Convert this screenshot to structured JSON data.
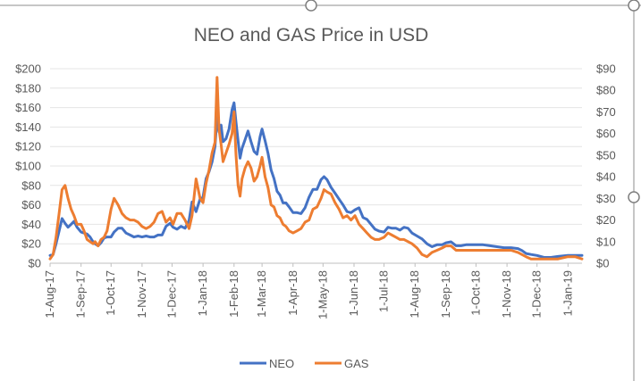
{
  "chart_data": {
    "type": "line",
    "title": "NEO and GAS Price in USD",
    "x_tick_labels": [
      "1-Aug-17",
      "1-Sep-17",
      "1-Oct-17",
      "1-Nov-17",
      "1-Dec-17",
      "1-Jan-18",
      "1-Feb-18",
      "1-Mar-18",
      "1-Apr-18",
      "1-May-18",
      "1-Jun-18",
      "1-Jul-18",
      "1-Aug-18",
      "1-Sep-18",
      "1-Oct-18",
      "1-Nov-18",
      "1-Dec-18",
      "1-Jan-19"
    ],
    "x_range": [
      "2017-08-01",
      "2019-01-15"
    ],
    "y_left": {
      "min": 0,
      "max": 200,
      "tick_labels": [
        "$0",
        "$20",
        "$40",
        "$60",
        "$80",
        "$100",
        "$120",
        "$140",
        "$160",
        "$180",
        "$200"
      ]
    },
    "y_right": {
      "min": 0,
      "max": 90,
      "tick_labels": [
        "$0",
        "$10",
        "$20",
        "$30",
        "$40",
        "$50",
        "$60",
        "$70",
        "$80",
        "$90"
      ]
    },
    "gridlines": true,
    "legend_position": "bottom",
    "series": [
      {
        "name": "NEO",
        "axis": "left",
        "color": "#4472C4",
        "points": [
          [
            "2017-08-01",
            8
          ],
          [
            "2017-08-04",
            9
          ],
          [
            "2017-08-07",
            20
          ],
          [
            "2017-08-10",
            33
          ],
          [
            "2017-08-13",
            46
          ],
          [
            "2017-08-16",
            41
          ],
          [
            "2017-08-19",
            37
          ],
          [
            "2017-08-22",
            40
          ],
          [
            "2017-08-25",
            43
          ],
          [
            "2017-08-28",
            37
          ],
          [
            "2017-09-01",
            32
          ],
          [
            "2017-09-04",
            31
          ],
          [
            "2017-09-07",
            30
          ],
          [
            "2017-09-10",
            27
          ],
          [
            "2017-09-13",
            22
          ],
          [
            "2017-09-15",
            20
          ],
          [
            "2017-09-18",
            18
          ],
          [
            "2017-09-21",
            21
          ],
          [
            "2017-09-24",
            26
          ],
          [
            "2017-09-27",
            27
          ],
          [
            "2017-10-01",
            27
          ],
          [
            "2017-10-04",
            32
          ],
          [
            "2017-10-08",
            36
          ],
          [
            "2017-10-12",
            36
          ],
          [
            "2017-10-16",
            31
          ],
          [
            "2017-10-20",
            29
          ],
          [
            "2017-10-24",
            27
          ],
          [
            "2017-10-28",
            28
          ],
          [
            "2017-11-01",
            27
          ],
          [
            "2017-11-05",
            28
          ],
          [
            "2017-11-09",
            27
          ],
          [
            "2017-11-13",
            27
          ],
          [
            "2017-11-17",
            29
          ],
          [
            "2017-11-21",
            29
          ],
          [
            "2017-11-25",
            38
          ],
          [
            "2017-11-29",
            41
          ],
          [
            "2017-12-02",
            37
          ],
          [
            "2017-12-06",
            35
          ],
          [
            "2017-12-10",
            38
          ],
          [
            "2017-12-14",
            36
          ],
          [
            "2017-12-18",
            44
          ],
          [
            "2017-12-21",
            63
          ],
          [
            "2017-12-25",
            53
          ],
          [
            "2017-12-29",
            66
          ],
          [
            "2018-01-01",
            68
          ],
          [
            "2018-01-04",
            87
          ],
          [
            "2018-01-07",
            94
          ],
          [
            "2018-01-10",
            104
          ],
          [
            "2018-01-13",
            120
          ],
          [
            "2018-01-15",
            150
          ],
          [
            "2018-01-17",
            135
          ],
          [
            "2018-01-19",
            142
          ],
          [
            "2018-01-21",
            125
          ],
          [
            "2018-01-24",
            128
          ],
          [
            "2018-01-27",
            138
          ],
          [
            "2018-01-30",
            158
          ],
          [
            "2018-02-01",
            165
          ],
          [
            "2018-02-03",
            145
          ],
          [
            "2018-02-05",
            126
          ],
          [
            "2018-02-07",
            108
          ],
          [
            "2018-02-09",
            118
          ],
          [
            "2018-02-12",
            127
          ],
          [
            "2018-02-15",
            136
          ],
          [
            "2018-02-18",
            125
          ],
          [
            "2018-02-21",
            115
          ],
          [
            "2018-02-24",
            112
          ],
          [
            "2018-02-27",
            130
          ],
          [
            "2018-03-01",
            138
          ],
          [
            "2018-03-04",
            126
          ],
          [
            "2018-03-07",
            113
          ],
          [
            "2018-03-10",
            96
          ],
          [
            "2018-03-13",
            87
          ],
          [
            "2018-03-16",
            74
          ],
          [
            "2018-03-19",
            70
          ],
          [
            "2018-03-22",
            62
          ],
          [
            "2018-03-25",
            62
          ],
          [
            "2018-03-28",
            58
          ],
          [
            "2018-04-01",
            52
          ],
          [
            "2018-04-05",
            52
          ],
          [
            "2018-04-09",
            51
          ],
          [
            "2018-04-13",
            57
          ],
          [
            "2018-04-17",
            68
          ],
          [
            "2018-04-21",
            76
          ],
          [
            "2018-04-25",
            76
          ],
          [
            "2018-04-29",
            86
          ],
          [
            "2018-05-02",
            89
          ],
          [
            "2018-05-05",
            86
          ],
          [
            "2018-05-09",
            78
          ],
          [
            "2018-05-13",
            72
          ],
          [
            "2018-05-17",
            66
          ],
          [
            "2018-05-21",
            60
          ],
          [
            "2018-05-25",
            53
          ],
          [
            "2018-05-29",
            52
          ],
          [
            "2018-06-02",
            55
          ],
          [
            "2018-06-06",
            57
          ],
          [
            "2018-06-10",
            47
          ],
          [
            "2018-06-14",
            45
          ],
          [
            "2018-06-18",
            40
          ],
          [
            "2018-06-22",
            35
          ],
          [
            "2018-06-26",
            33
          ],
          [
            "2018-07-01",
            32
          ],
          [
            "2018-07-05",
            37
          ],
          [
            "2018-07-09",
            36
          ],
          [
            "2018-07-13",
            36
          ],
          [
            "2018-07-17",
            34
          ],
          [
            "2018-07-21",
            37
          ],
          [
            "2018-07-25",
            36
          ],
          [
            "2018-07-29",
            31
          ],
          [
            "2018-08-03",
            28
          ],
          [
            "2018-08-08",
            25
          ],
          [
            "2018-08-13",
            20
          ],
          [
            "2018-08-18",
            17
          ],
          [
            "2018-08-23",
            19
          ],
          [
            "2018-08-28",
            19
          ],
          [
            "2018-09-01",
            21
          ],
          [
            "2018-09-06",
            22
          ],
          [
            "2018-09-11",
            18
          ],
          [
            "2018-09-16",
            18
          ],
          [
            "2018-09-21",
            19
          ],
          [
            "2018-09-26",
            19
          ],
          [
            "2018-10-01",
            19
          ],
          [
            "2018-10-08",
            19
          ],
          [
            "2018-10-15",
            18
          ],
          [
            "2018-10-22",
            17
          ],
          [
            "2018-10-29",
            16
          ],
          [
            "2018-11-05",
            16
          ],
          [
            "2018-11-12",
            15
          ],
          [
            "2018-11-16",
            13
          ],
          [
            "2018-11-20",
            10
          ],
          [
            "2018-11-25",
            9
          ],
          [
            "2018-12-01",
            8
          ],
          [
            "2018-12-08",
            6
          ],
          [
            "2018-12-15",
            6
          ],
          [
            "2018-12-22",
            7
          ],
          [
            "2019-01-01",
            8
          ],
          [
            "2019-01-08",
            8
          ],
          [
            "2019-01-15",
            8
          ]
        ]
      },
      {
        "name": "GAS",
        "axis": "right",
        "color": "#ED7D31",
        "points": [
          [
            "2017-08-01",
            2
          ],
          [
            "2017-08-04",
            4
          ],
          [
            "2017-08-07",
            12
          ],
          [
            "2017-08-10",
            23
          ],
          [
            "2017-08-13",
            34
          ],
          [
            "2017-08-16",
            36
          ],
          [
            "2017-08-19",
            30
          ],
          [
            "2017-08-22",
            25
          ],
          [
            "2017-08-25",
            22
          ],
          [
            "2017-08-28",
            18
          ],
          [
            "2017-09-01",
            18
          ],
          [
            "2017-09-04",
            15
          ],
          [
            "2017-09-07",
            11
          ],
          [
            "2017-09-10",
            10
          ],
          [
            "2017-09-13",
            9
          ],
          [
            "2017-09-15",
            10
          ],
          [
            "2017-09-18",
            8
          ],
          [
            "2017-09-21",
            11
          ],
          [
            "2017-09-24",
            12
          ],
          [
            "2017-09-27",
            15
          ],
          [
            "2017-10-01",
            25
          ],
          [
            "2017-10-04",
            30
          ],
          [
            "2017-10-08",
            27
          ],
          [
            "2017-10-12",
            23
          ],
          [
            "2017-10-16",
            21
          ],
          [
            "2017-10-20",
            20
          ],
          [
            "2017-10-24",
            20
          ],
          [
            "2017-10-28",
            19
          ],
          [
            "2017-11-01",
            17
          ],
          [
            "2017-11-05",
            16
          ],
          [
            "2017-11-09",
            17
          ],
          [
            "2017-11-13",
            19
          ],
          [
            "2017-11-17",
            23
          ],
          [
            "2017-11-21",
            24
          ],
          [
            "2017-11-25",
            19
          ],
          [
            "2017-11-29",
            21
          ],
          [
            "2017-12-02",
            18
          ],
          [
            "2017-12-06",
            23
          ],
          [
            "2017-12-10",
            23
          ],
          [
            "2017-12-14",
            20
          ],
          [
            "2017-12-18",
            16
          ],
          [
            "2017-12-21",
            22
          ],
          [
            "2017-12-25",
            39
          ],
          [
            "2017-12-29",
            30
          ],
          [
            "2018-01-01",
            28
          ],
          [
            "2018-01-04",
            37
          ],
          [
            "2018-01-07",
            43
          ],
          [
            "2018-01-10",
            51
          ],
          [
            "2018-01-13",
            56
          ],
          [
            "2018-01-15",
            86
          ],
          [
            "2018-01-17",
            62
          ],
          [
            "2018-01-19",
            55
          ],
          [
            "2018-01-21",
            47
          ],
          [
            "2018-01-24",
            51
          ],
          [
            "2018-01-27",
            55
          ],
          [
            "2018-01-30",
            60
          ],
          [
            "2018-02-01",
            70
          ],
          [
            "2018-02-03",
            50
          ],
          [
            "2018-02-05",
            36
          ],
          [
            "2018-02-07",
            31
          ],
          [
            "2018-02-09",
            39
          ],
          [
            "2018-02-12",
            44
          ],
          [
            "2018-02-15",
            47
          ],
          [
            "2018-02-18",
            44
          ],
          [
            "2018-02-21",
            38
          ],
          [
            "2018-02-24",
            40
          ],
          [
            "2018-02-27",
            45
          ],
          [
            "2018-03-01",
            49
          ],
          [
            "2018-03-04",
            40
          ],
          [
            "2018-03-07",
            35
          ],
          [
            "2018-03-10",
            27
          ],
          [
            "2018-03-13",
            26
          ],
          [
            "2018-03-16",
            22
          ],
          [
            "2018-03-19",
            21
          ],
          [
            "2018-03-22",
            18
          ],
          [
            "2018-03-25",
            17
          ],
          [
            "2018-03-28",
            15
          ],
          [
            "2018-04-01",
            14
          ],
          [
            "2018-04-05",
            15
          ],
          [
            "2018-04-09",
            16
          ],
          [
            "2018-04-13",
            19
          ],
          [
            "2018-04-17",
            20
          ],
          [
            "2018-04-21",
            25
          ],
          [
            "2018-04-25",
            26
          ],
          [
            "2018-04-29",
            30
          ],
          [
            "2018-05-02",
            34
          ],
          [
            "2018-05-05",
            33
          ],
          [
            "2018-05-09",
            32
          ],
          [
            "2018-05-13",
            28
          ],
          [
            "2018-05-17",
            25
          ],
          [
            "2018-05-21",
            21
          ],
          [
            "2018-05-25",
            22
          ],
          [
            "2018-05-29",
            20
          ],
          [
            "2018-06-02",
            22
          ],
          [
            "2018-06-06",
            18
          ],
          [
            "2018-06-10",
            16
          ],
          [
            "2018-06-14",
            14
          ],
          [
            "2018-06-18",
            12
          ],
          [
            "2018-06-22",
            11
          ],
          [
            "2018-06-26",
            11
          ],
          [
            "2018-07-01",
            12
          ],
          [
            "2018-07-05",
            14
          ],
          [
            "2018-07-09",
            13
          ],
          [
            "2018-07-13",
            12
          ],
          [
            "2018-07-17",
            11
          ],
          [
            "2018-07-21",
            11
          ],
          [
            "2018-07-25",
            10
          ],
          [
            "2018-07-29",
            9
          ],
          [
            "2018-08-03",
            7
          ],
          [
            "2018-08-08",
            4
          ],
          [
            "2018-08-13",
            3
          ],
          [
            "2018-08-18",
            5
          ],
          [
            "2018-08-23",
            6
          ],
          [
            "2018-08-28",
            7
          ],
          [
            "2018-09-01",
            8
          ],
          [
            "2018-09-06",
            8
          ],
          [
            "2018-09-11",
            6
          ],
          [
            "2018-09-16",
            6
          ],
          [
            "2018-09-21",
            6
          ],
          [
            "2018-09-26",
            6
          ],
          [
            "2018-10-01",
            6
          ],
          [
            "2018-10-08",
            6
          ],
          [
            "2018-10-15",
            6
          ],
          [
            "2018-10-22",
            6
          ],
          [
            "2018-10-29",
            6
          ],
          [
            "2018-11-05",
            6
          ],
          [
            "2018-11-12",
            5
          ],
          [
            "2018-11-16",
            4
          ],
          [
            "2018-11-20",
            3
          ],
          [
            "2018-11-25",
            2
          ],
          [
            "2018-12-01",
            2
          ],
          [
            "2018-12-08",
            2
          ],
          [
            "2018-12-15",
            2
          ],
          [
            "2018-12-22",
            2
          ],
          [
            "2019-01-01",
            3
          ],
          [
            "2019-01-08",
            3
          ],
          [
            "2019-01-15",
            2
          ]
        ]
      }
    ]
  }
}
